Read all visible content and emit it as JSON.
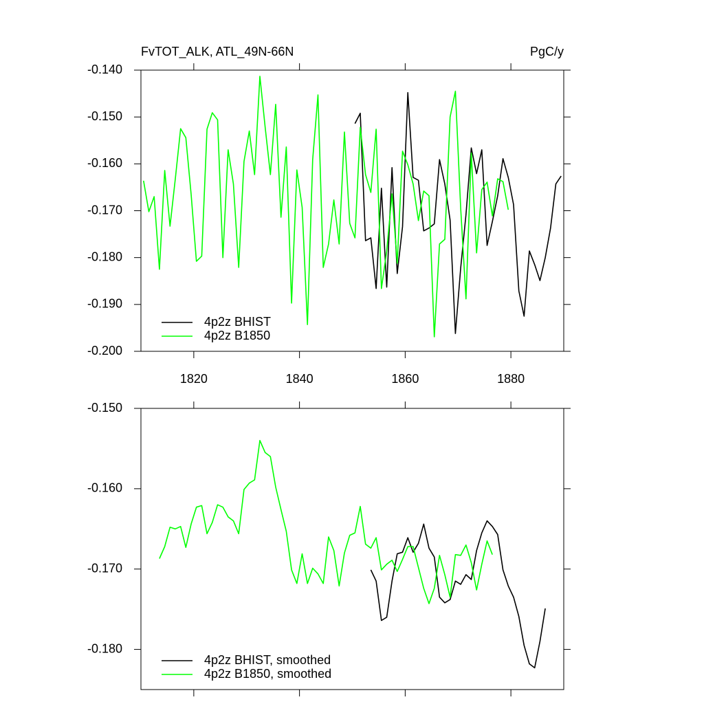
{
  "chart_data": [
    {
      "type": "line",
      "title": "FvTOT_ALK, ATL_49N-66N",
      "right_title": "PgC/y",
      "xlim": [
        1810,
        1890
      ],
      "xticks": [
        1820,
        1840,
        1860,
        1880
      ],
      "xtick_labels": true,
      "ylim": [
        -0.2,
        -0.14
      ],
      "yticks": [
        {
          "value": -0.2,
          "label": "-0.200"
        },
        {
          "value": -0.19,
          "label": "-0.190"
        },
        {
          "value": -0.18,
          "label": "-0.180"
        },
        {
          "value": -0.17,
          "label": "-0.170"
        },
        {
          "value": -0.16,
          "label": "-0.160"
        },
        {
          "value": -0.15,
          "label": "-0.150"
        },
        {
          "value": -0.14,
          "label": "-0.140"
        }
      ],
      "legend": "lower left",
      "series": [
        {
          "name": "4p2z BHIST",
          "color": "#000000",
          "x": [
            1850.5,
            1851.5,
            1852.5,
            1853.5,
            1854.5,
            1855.5,
            1856.5,
            1857.5,
            1858.5,
            1859.5,
            1860.5,
            1861.5,
            1862.5,
            1863.5,
            1864.5,
            1865.5,
            1866.5,
            1867.5,
            1868.5,
            1869.5,
            1870.5,
            1871.5,
            1872.5,
            1873.5,
            1874.5,
            1875.5,
            1876.5,
            1877.5,
            1878.5,
            1879.5,
            1880.5,
            1881.5,
            1882.5,
            1883.5,
            1884.5,
            1885.5,
            1886.5,
            1887.5,
            1888.5,
            1889.5
          ],
          "values": [
            -0.1514,
            -0.1492,
            -0.1764,
            -0.1758,
            -0.1866,
            -0.1652,
            -0.1863,
            -0.1608,
            -0.1834,
            -0.1734,
            -0.1448,
            -0.1629,
            -0.1635,
            -0.1743,
            -0.1737,
            -0.1728,
            -0.1591,
            -0.1643,
            -0.172,
            -0.1962,
            -0.1822,
            -0.1708,
            -0.1566,
            -0.1621,
            -0.157,
            -0.1774,
            -0.1723,
            -0.1668,
            -0.1589,
            -0.1629,
            -0.1687,
            -0.1871,
            -0.1925,
            -0.1786,
            -0.1815,
            -0.1849,
            -0.18,
            -0.1737,
            -0.1643,
            -0.1626
          ]
        },
        {
          "name": "4p2z B1850",
          "color": "#00ff00",
          "x": [
            1810.5,
            1811.5,
            1812.5,
            1813.5,
            1814.5,
            1815.5,
            1816.5,
            1817.5,
            1818.5,
            1819.5,
            1820.5,
            1821.5,
            1822.5,
            1823.5,
            1824.5,
            1825.5,
            1826.5,
            1827.5,
            1828.5,
            1829.5,
            1830.5,
            1831.5,
            1832.5,
            1833.5,
            1834.5,
            1835.5,
            1836.5,
            1837.5,
            1838.5,
            1839.5,
            1840.5,
            1841.5,
            1842.5,
            1843.5,
            1844.5,
            1845.5,
            1846.5,
            1847.5,
            1848.5,
            1849.5,
            1850.5,
            1851.5,
            1852.5,
            1853.5,
            1854.5,
            1855.5,
            1856.5,
            1857.5,
            1858.5,
            1859.5,
            1860.5,
            1861.5,
            1862.5,
            1863.5,
            1864.5,
            1865.5,
            1866.5,
            1867.5,
            1868.5,
            1869.5,
            1870.5,
            1871.5,
            1872.5,
            1873.5,
            1874.5,
            1875.5,
            1876.5,
            1877.5,
            1878.5,
            1879.5
          ],
          "values": [
            -0.1636,
            -0.1702,
            -0.167,
            -0.1825,
            -0.1614,
            -0.1733,
            -0.1632,
            -0.1525,
            -0.1544,
            -0.1665,
            -0.1808,
            -0.1797,
            -0.1526,
            -0.1491,
            -0.1506,
            -0.18,
            -0.157,
            -0.1643,
            -0.1821,
            -0.1595,
            -0.153,
            -0.1623,
            -0.1413,
            -0.1522,
            -0.1623,
            -0.1473,
            -0.1714,
            -0.1564,
            -0.1897,
            -0.1613,
            -0.1693,
            -0.1943,
            -0.1591,
            -0.1453,
            -0.1821,
            -0.1771,
            -0.1677,
            -0.1771,
            -0.1532,
            -0.1727,
            -0.1758,
            -0.1522,
            -0.1623,
            -0.1661,
            -0.1526,
            -0.1866,
            -0.1786,
            -0.1664,
            -0.1812,
            -0.1573,
            -0.1602,
            -0.1643,
            -0.1721,
            -0.1658,
            -0.1668,
            -0.1969,
            -0.1771,
            -0.1761,
            -0.15,
            -0.1445,
            -0.1695,
            -0.1888,
            -0.1577,
            -0.179,
            -0.1655,
            -0.1639,
            -0.1711,
            -0.1632,
            -0.1638,
            -0.1698
          ]
        }
      ]
    },
    {
      "type": "line",
      "xlim": [
        1810,
        1890
      ],
      "xticks": [
        1820,
        1840,
        1860,
        1880
      ],
      "xtick_labels": false,
      "ylim": [
        -0.185,
        -0.15
      ],
      "yticks": [
        {
          "value": -0.18,
          "label": "-0.180"
        },
        {
          "value": -0.17,
          "label": "-0.170"
        },
        {
          "value": -0.16,
          "label": "-0.160"
        },
        {
          "value": -0.15,
          "label": "-0.150"
        }
      ],
      "legend": "lower left",
      "series": [
        {
          "name": "4p2z BHIST, smoothed",
          "color": "#000000",
          "x": [
            1853.5,
            1854.5,
            1855.5,
            1856.5,
            1857.5,
            1858.5,
            1859.5,
            1860.5,
            1861.5,
            1862.5,
            1863.5,
            1864.5,
            1865.5,
            1866.5,
            1867.5,
            1868.5,
            1869.5,
            1870.5,
            1871.5,
            1872.5,
            1873.5,
            1874.5,
            1875.5,
            1876.5,
            1877.5,
            1878.5,
            1879.5,
            1880.5,
            1881.5,
            1882.5,
            1883.5,
            1884.5,
            1885.5,
            1886.5
          ],
          "values": [
            -0.1701,
            -0.1715,
            -0.1764,
            -0.176,
            -0.1715,
            -0.1681,
            -0.1679,
            -0.1661,
            -0.1679,
            -0.1668,
            -0.1644,
            -0.1674,
            -0.1685,
            -0.1735,
            -0.1742,
            -0.1738,
            -0.1715,
            -0.1719,
            -0.1707,
            -0.1713,
            -0.1677,
            -0.1655,
            -0.164,
            -0.1647,
            -0.1657,
            -0.1701,
            -0.1721,
            -0.1735,
            -0.1759,
            -0.1795,
            -0.1818,
            -0.1823,
            -0.179,
            -0.1749
          ]
        },
        {
          "name": "4p2z B1850, smoothed",
          "color": "#00ff00",
          "x": [
            1813.5,
            1814.5,
            1815.5,
            1816.5,
            1817.5,
            1818.5,
            1819.5,
            1820.5,
            1821.5,
            1822.5,
            1823.5,
            1824.5,
            1825.5,
            1826.5,
            1827.5,
            1828.5,
            1829.5,
            1830.5,
            1831.5,
            1832.5,
            1833.5,
            1834.5,
            1835.5,
            1836.5,
            1837.5,
            1838.5,
            1839.5,
            1840.5,
            1841.5,
            1842.5,
            1843.5,
            1844.5,
            1845.5,
            1846.5,
            1847.5,
            1848.5,
            1849.5,
            1850.5,
            1851.5,
            1852.5,
            1853.5,
            1854.5,
            1855.5,
            1856.5,
            1857.5,
            1858.5,
            1859.5,
            1860.5,
            1861.5,
            1862.5,
            1863.5,
            1864.5,
            1865.5,
            1866.5,
            1867.5,
            1868.5,
            1869.5,
            1870.5,
            1871.5,
            1872.5,
            1873.5,
            1874.5,
            1875.5,
            1876.5
          ],
          "values": [
            -0.1687,
            -0.1672,
            -0.1648,
            -0.165,
            -0.1647,
            -0.1673,
            -0.1644,
            -0.1623,
            -0.1621,
            -0.1656,
            -0.1642,
            -0.162,
            -0.1623,
            -0.1635,
            -0.164,
            -0.1656,
            -0.1601,
            -0.1593,
            -0.1589,
            -0.154,
            -0.1555,
            -0.156,
            -0.1598,
            -0.1626,
            -0.1653,
            -0.1701,
            -0.1718,
            -0.1681,
            -0.1718,
            -0.1699,
            -0.1706,
            -0.1718,
            -0.166,
            -0.1677,
            -0.1721,
            -0.168,
            -0.1658,
            -0.1655,
            -0.1622,
            -0.1669,
            -0.1674,
            -0.1661,
            -0.1701,
            -0.1694,
            -0.1689,
            -0.1703,
            -0.1688,
            -0.1672,
            -0.1672,
            -0.1698,
            -0.1724,
            -0.1743,
            -0.1724,
            -0.1683,
            -0.1707,
            -0.1735,
            -0.1682,
            -0.1683,
            -0.167,
            -0.1692,
            -0.1726,
            -0.1694,
            -0.1665,
            -0.1682
          ]
        }
      ]
    }
  ]
}
